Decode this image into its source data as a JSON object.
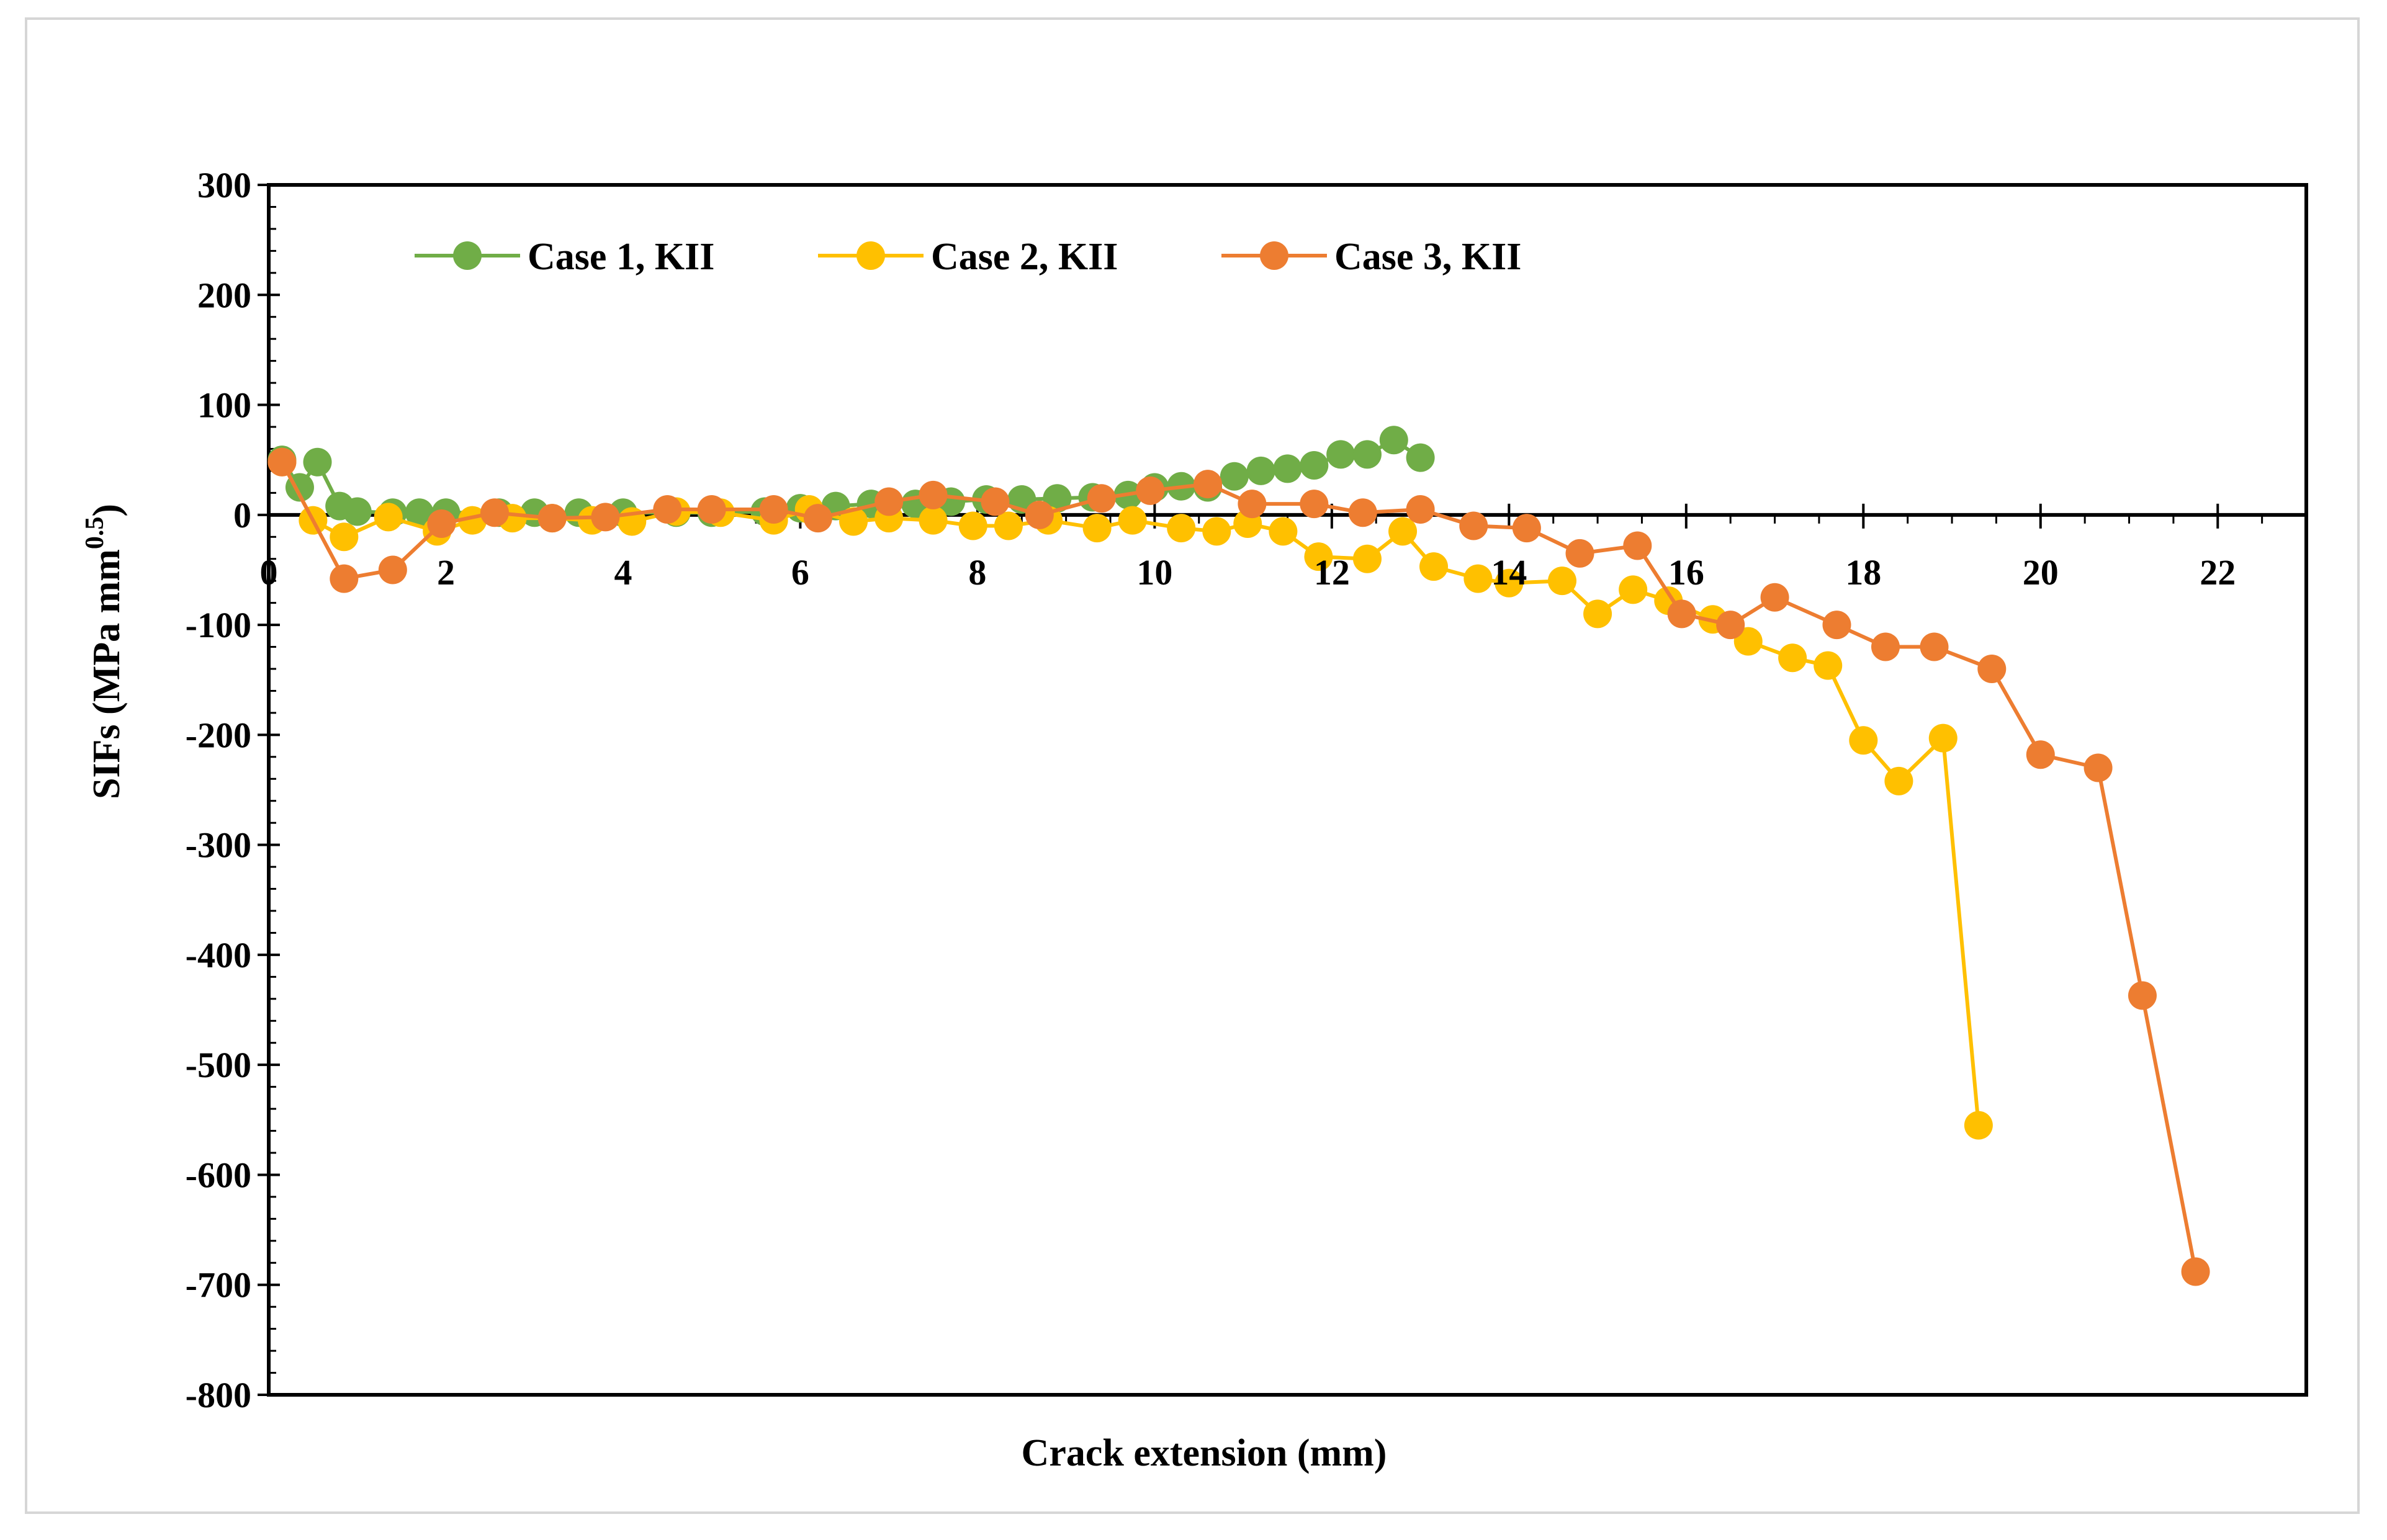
{
  "chart_data": {
    "type": "line",
    "title": "",
    "xlabel": "Crack extension (mm)",
    "ylabel": "SIFs (MPa mm",
    "ylabel_sup": "0.5",
    "ylabel_close": ")",
    "xlim": [
      0,
      23
    ],
    "ylim": [
      -800,
      300
    ],
    "x_ticks": [
      0,
      2,
      4,
      6,
      8,
      10,
      12,
      14,
      16,
      18,
      20,
      22
    ],
    "y_ticks": [
      300,
      200,
      100,
      0,
      -100,
      -200,
      -300,
      -400,
      -500,
      -600,
      -700,
      -800
    ],
    "x_minor_step": 0.5,
    "y_minor_step": 20,
    "legend_position": "top-left",
    "series": [
      {
        "name": "Case 1, KII",
        "color": "#70ad47",
        "x": [
          0.15,
          0.35,
          0.55,
          0.8,
          1.0,
          1.4,
          1.7,
          2.0,
          2.6,
          3.0,
          3.5,
          4.0,
          4.6,
          5.0,
          5.6,
          6.0,
          6.4,
          6.8,
          7.3,
          7.7,
          8.1,
          8.5,
          8.9,
          9.3,
          9.7,
          10.0,
          10.3,
          10.6,
          10.9,
          11.2,
          11.5,
          11.8,
          12.1,
          12.4,
          12.7,
          13.0
        ],
        "y": [
          50,
          25,
          48,
          8,
          3,
          2,
          2,
          2,
          2,
          2,
          2,
          2,
          2,
          2,
          3,
          6,
          8,
          10,
          10,
          12,
          14,
          14,
          15,
          16,
          18,
          25,
          26,
          25,
          35,
          40,
          42,
          45,
          55,
          55,
          68,
          52
        ]
      },
      {
        "name": "Case 2, KII",
        "color": "#ffc000",
        "x": [
          0.15,
          0.5,
          0.85,
          1.35,
          1.9,
          2.3,
          2.75,
          3.2,
          3.65,
          4.1,
          4.6,
          5.1,
          5.7,
          6.1,
          6.6,
          7.0,
          7.5,
          7.95,
          8.35,
          8.8,
          9.35,
          9.75,
          10.3,
          10.7,
          11.05,
          11.45,
          11.85,
          12.4,
          12.8,
          13.15,
          13.65,
          14.0,
          14.6,
          15.0,
          15.4,
          15.8,
          16.3,
          16.7,
          17.2,
          17.6,
          18.0,
          18.4,
          18.9,
          19.3
        ],
        "y": [
          48,
          -5,
          -20,
          -2,
          -15,
          -5,
          -3,
          -3,
          -5,
          -6,
          3,
          2,
          -5,
          5,
          -6,
          -3,
          -5,
          -10,
          -10,
          -5,
          -12,
          -5,
          -12,
          -15,
          -8,
          -15,
          -38,
          -40,
          -15,
          -47,
          -58,
          -62,
          -60,
          -90,
          -68,
          -78,
          -95,
          -115,
          -130,
          -137,
          -205,
          -242,
          -203,
          -555
        ]
      },
      {
        "name": "Case 3,  KII",
        "color": "#ed7d31",
        "x": [
          0.15,
          0.85,
          1.4,
          1.95,
          2.55,
          3.2,
          3.8,
          4.5,
          5.0,
          5.7,
          6.2,
          7.0,
          7.5,
          8.2,
          8.7,
          9.4,
          9.95,
          10.6,
          11.1,
          11.8,
          12.35,
          13.0,
          13.6,
          14.2,
          14.8,
          15.45,
          15.95,
          16.5,
          17.0,
          17.7,
          18.25,
          18.8,
          19.45,
          20.0,
          20.65,
          21.15,
          21.75
        ],
        "y": [
          48,
          -58,
          -50,
          -8,
          2,
          -3,
          -2,
          5,
          5,
          5,
          -3,
          12,
          18,
          12,
          0,
          15,
          22,
          28,
          10,
          10,
          2,
          5,
          -10,
          -12,
          -35,
          -28,
          -90,
          -100,
          -75,
          -100,
          -120,
          -120,
          -140,
          -218,
          -230,
          -437,
          -688
        ]
      }
    ]
  }
}
